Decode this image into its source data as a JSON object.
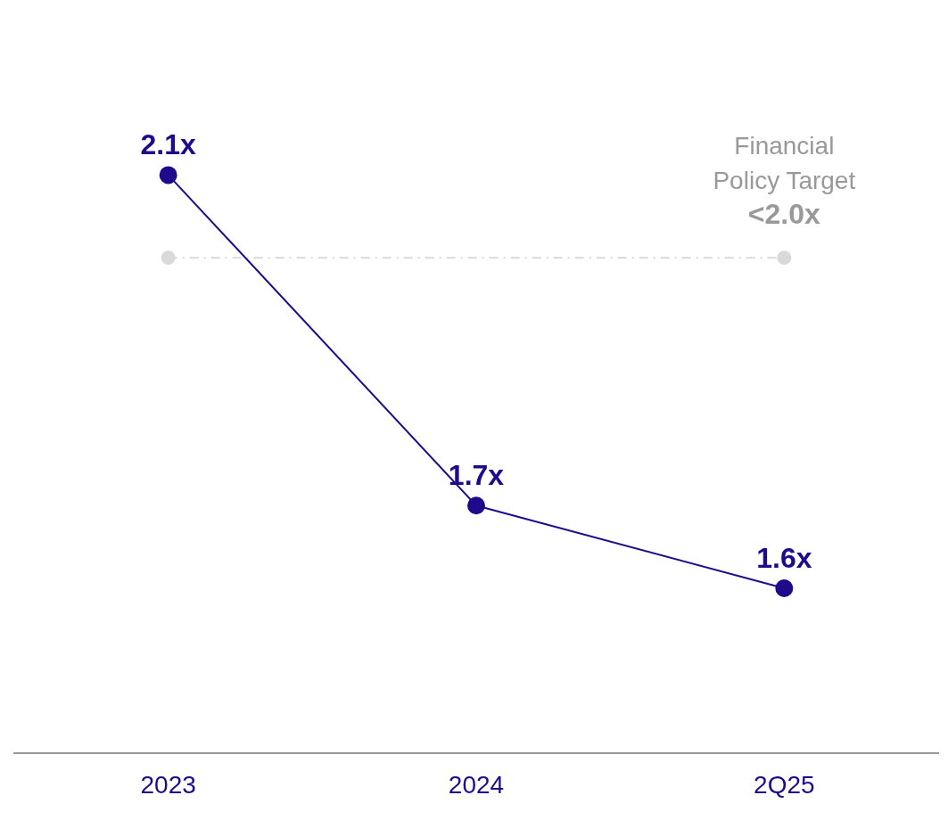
{
  "chart_data": {
    "type": "line",
    "categories": [
      "2023",
      "2024",
      "2Q25"
    ],
    "series": [
      {
        "color": "#1f0a8c",
        "values": [
          2.1,
          1.7,
          1.6
        ],
        "value_labels": [
          "2.1x",
          "1.7x",
          "1.6x"
        ]
      },
      {
        "color": "#d9d9d9",
        "line_style": "dashdot",
        "values": [
          2.0,
          null,
          2.0
        ]
      }
    ],
    "tick_labels": "x",
    "grid": false,
    "legend": false,
    "marker": "circle",
    "line_style": "solid",
    "annotations": [
      {
        "text": "Financial Policy Target <2.0x",
        "x": "2Q25",
        "y": 2.0
      }
    ]
  }
}
